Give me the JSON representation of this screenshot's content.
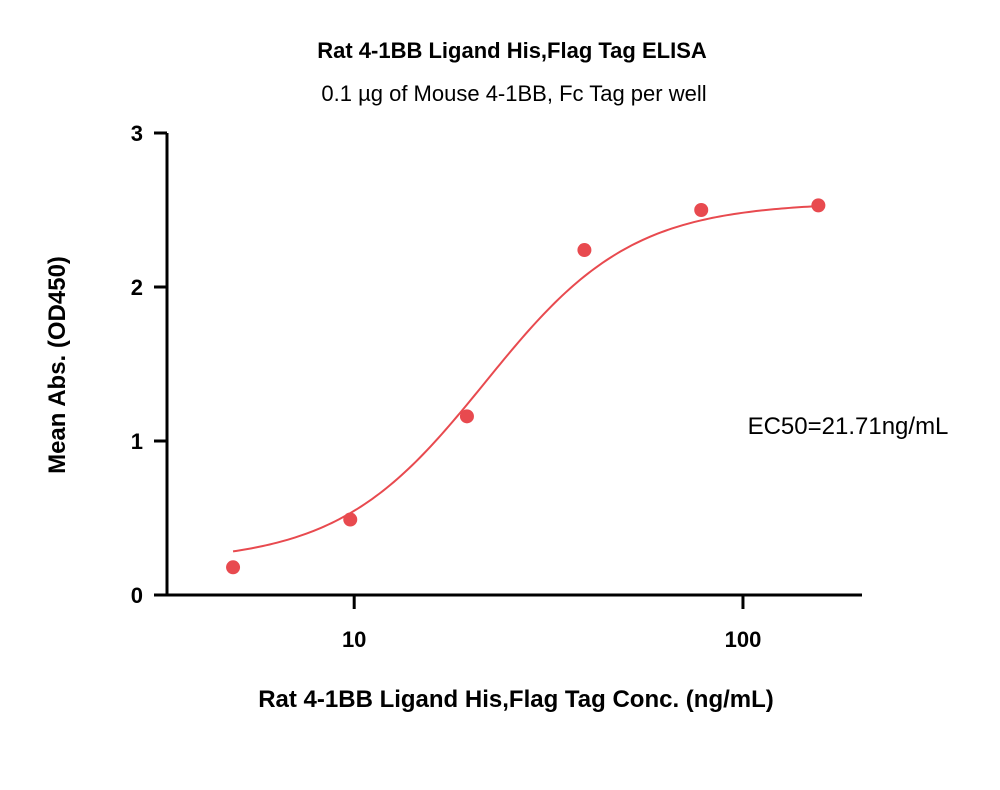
{
  "chart_data": {
    "type": "scatter",
    "title": "Rat 4-1BB Ligand His,Flag Tag ELISA",
    "subtitle": "0.1 µg of Mouse 4-1BB, Fc Tag per well",
    "xlabel": "Rat 4-1BB Ligand His,Flag Tag Conc. (ng/mL)",
    "ylabel": "Mean Abs. (OD450)",
    "x_scale": "log",
    "xlim": [
      3.3,
      200
    ],
    "ylim": [
      0,
      3
    ],
    "x_ticks": [
      10,
      100
    ],
    "x_tick_labels": [
      "10",
      "100"
    ],
    "y_ticks": [
      0,
      1,
      2,
      3
    ],
    "y_tick_labels": [
      "0",
      "1",
      "2",
      "3"
    ],
    "grid": false,
    "series": [
      {
        "points": [
          {
            "x": 4.88,
            "y": 0.18
          },
          {
            "x": 9.77,
            "y": 0.49
          },
          {
            "x": 19.5,
            "y": 1.16
          },
          {
            "x": 39.1,
            "y": 2.24
          },
          {
            "x": 78.1,
            "y": 2.5
          },
          {
            "x": 156.3,
            "y": 2.53
          }
        ],
        "fit": {
          "model": "4PL",
          "bottom": 0.21,
          "top": 2.55,
          "ec50": 21.71,
          "hill": 2.3
        },
        "color": "#e84a4f"
      }
    ],
    "annotations": [
      {
        "text": "EC50=21.71ng/mL"
      }
    ]
  }
}
